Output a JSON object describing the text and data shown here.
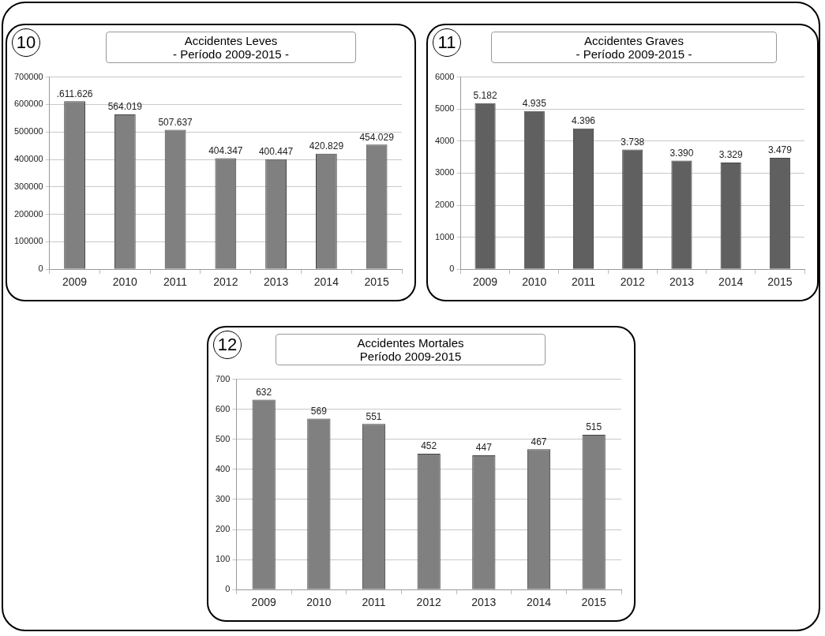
{
  "chart_data": [
    {
      "type": "bar",
      "title": "Accidentes Leves",
      "subtitle": "- Período 2009-2015 -",
      "annotations": [
        "10"
      ],
      "categories": [
        "2009",
        "2010",
        "2011",
        "2012",
        "2013",
        "2014",
        "2015"
      ],
      "color": "#808080",
      "values": [
        611626,
        564019,
        507637,
        404347,
        400447,
        420829,
        454029
      ],
      "value_labels": [
        ".611.626",
        "564.019",
        "507.637",
        "404.347",
        "400.447",
        "420.829",
        "454.029"
      ],
      "ylim": [
        0,
        700000
      ],
      "yticks": [
        0,
        100000,
        200000,
        300000,
        400000,
        500000,
        600000,
        700000
      ],
      "grid": "y"
    },
    {
      "type": "bar",
      "title": "Accidentes Graves",
      "subtitle": "- Período 2009-2015 -",
      "annotations": [
        "11"
      ],
      "categories": [
        "2009",
        "2010",
        "2011",
        "2012",
        "2013",
        "2014",
        "2015"
      ],
      "color": "#606060",
      "values": [
        5182,
        4935,
        4396,
        3738,
        3390,
        3329,
        3479
      ],
      "value_labels": [
        "5.182",
        "4.935",
        "4.396",
        "3.738",
        "3.390",
        "3.329",
        "3.479"
      ],
      "ylim": [
        0,
        6000
      ],
      "yticks": [
        0,
        1000,
        2000,
        3000,
        4000,
        5000,
        6000
      ],
      "grid": "y"
    },
    {
      "type": "bar",
      "title": "Accidentes Mortales",
      "subtitle": "Período 2009-2015",
      "annotations": [
        "12"
      ],
      "categories": [
        "2009",
        "2010",
        "2011",
        "2012",
        "2013",
        "2014",
        "2015"
      ],
      "color": "#808080",
      "values": [
        632,
        569,
        551,
        452,
        447,
        467,
        515
      ],
      "data_labels": true,
      "ylim": [
        0,
        700
      ],
      "yticks": [
        0,
        100,
        200,
        300,
        400,
        500,
        600,
        700
      ],
      "grid": "y"
    }
  ]
}
